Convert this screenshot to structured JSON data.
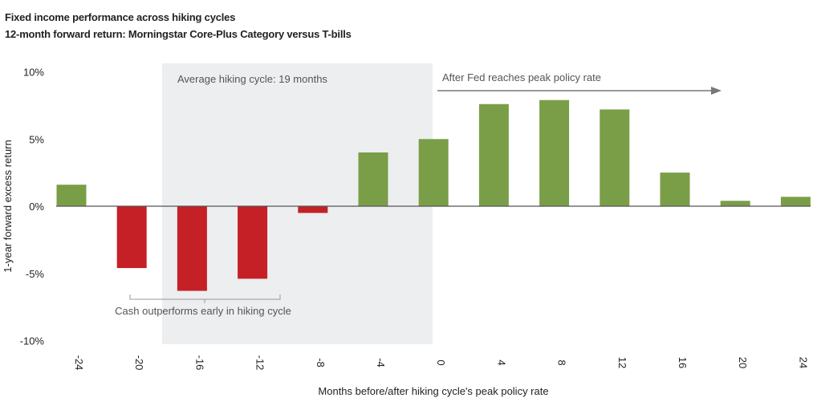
{
  "title": "Fixed income performance across hiking cycles",
  "subtitle": "12-month forward return: Morningstar Core-Plus Category versus T-bills",
  "chart_data": {
    "type": "bar",
    "xlabel": "Months before/after hiking cycle's peak policy rate",
    "ylabel": "1-year forward excess return",
    "ylim": [
      -10,
      10
    ],
    "yticks": [
      10,
      5,
      0,
      -5,
      -10
    ],
    "ytick_labels": [
      "10%",
      "5%",
      "0%",
      "-5%",
      "-10%"
    ],
    "categories": [
      "-24",
      "-20",
      "-16",
      "-12",
      "-8",
      "-4",
      "0",
      "4",
      "8",
      "12",
      "16",
      "20",
      "24"
    ],
    "values": [
      1.6,
      -4.6,
      -6.3,
      -5.4,
      -0.5,
      4.0,
      5.0,
      7.6,
      7.9,
      7.2,
      2.5,
      0.4,
      0.7
    ],
    "colors": {
      "positive": "#7a9e47",
      "negative": "#c52026",
      "shade": "#eceef0",
      "axis": "#555555"
    },
    "annotations": {
      "avg_cycle": "Average hiking cycle: 19 months",
      "after_peak": "After Fed reaches peak policy rate",
      "cash_outperforms": "Cash outperforms early in hiking cycle"
    }
  }
}
